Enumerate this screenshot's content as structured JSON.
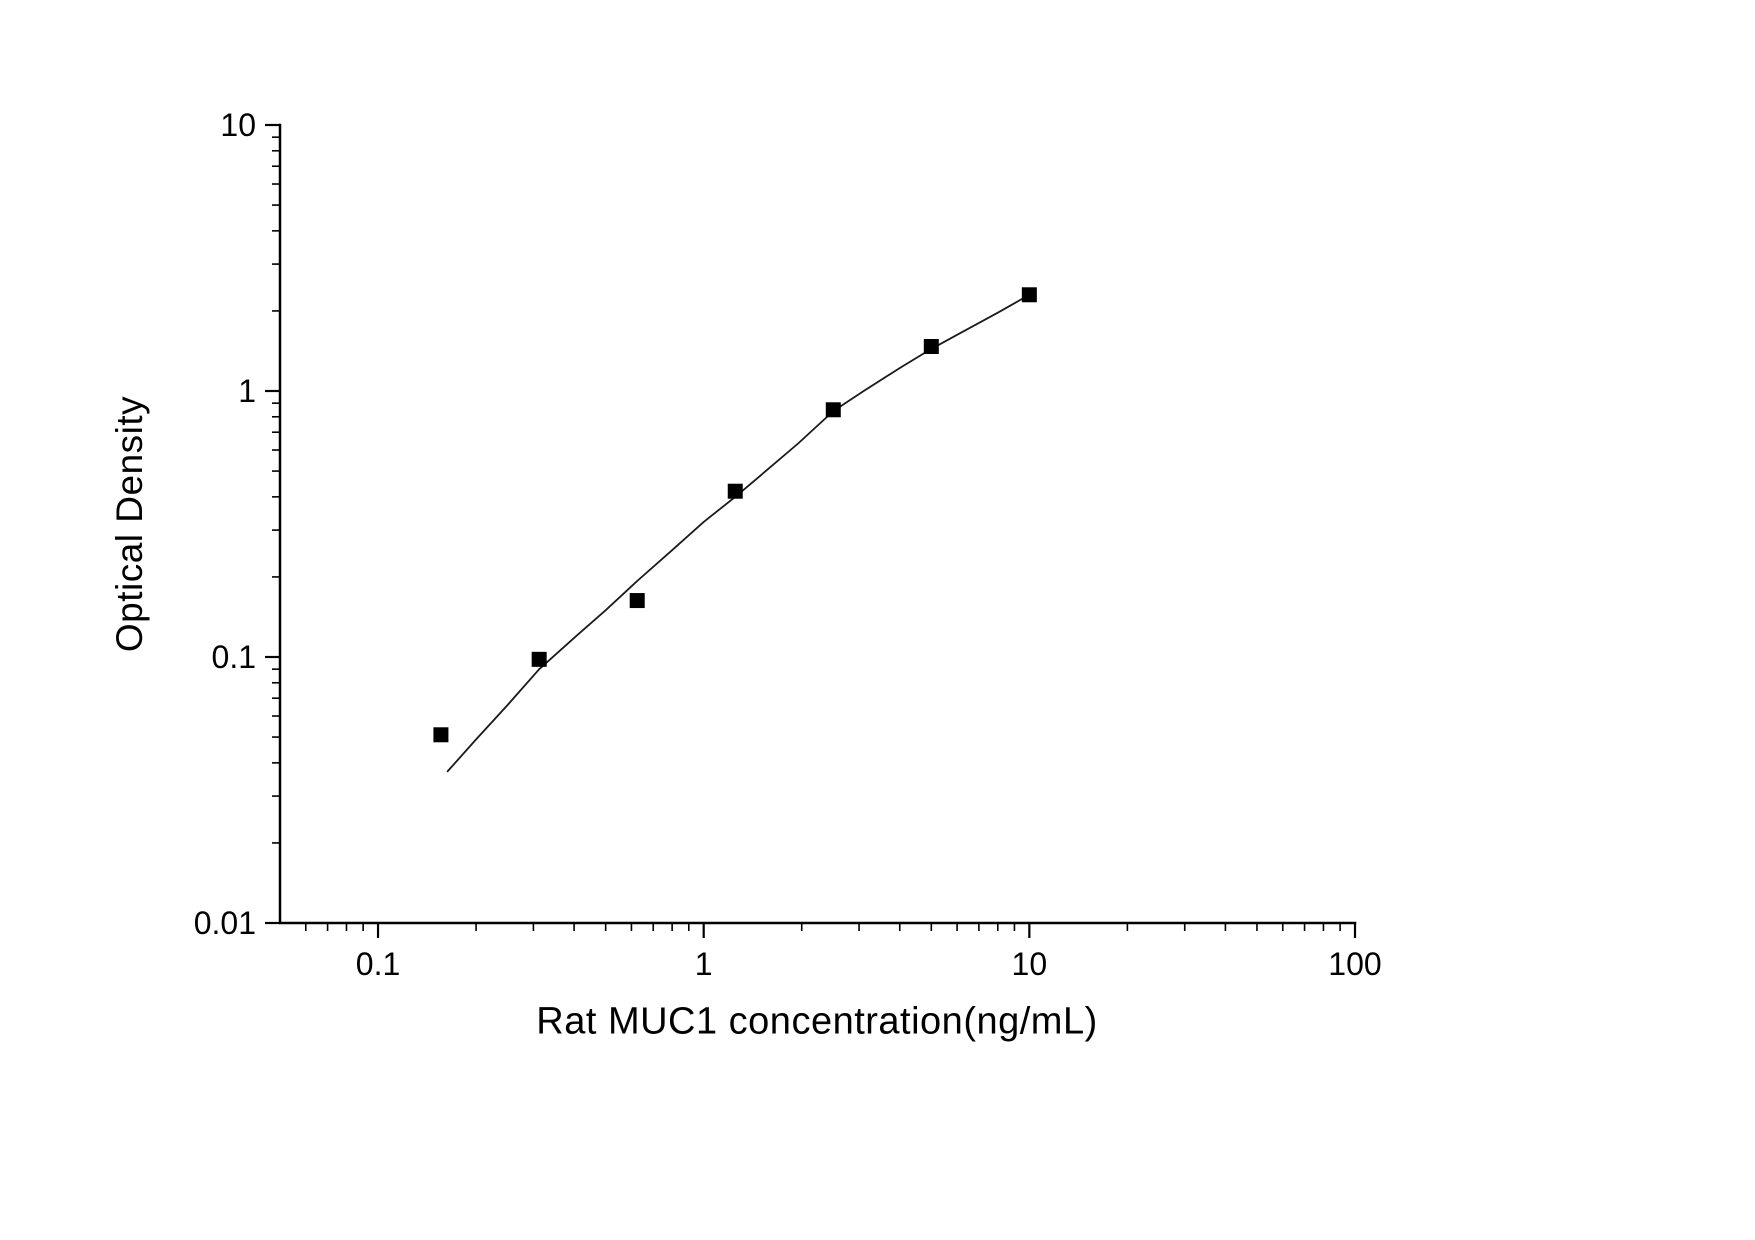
{
  "colors": {
    "background": "#ffffff",
    "axis": "#000000",
    "marker": "#000000",
    "curve": "#1a1a1a"
  },
  "chart_data": {
    "type": "scatter",
    "title": "",
    "xlabel": "Rat MUC1 concentration(ng/mL)",
    "ylabel": "Optical Density",
    "x_scale": "log",
    "y_scale": "log",
    "xlim": [
      0.05,
      100
    ],
    "ylim": [
      0.01,
      10
    ],
    "x_major_ticks": [
      0.1,
      1,
      10,
      100
    ],
    "x_tick_labels": [
      "0.1",
      "1",
      "10",
      "100"
    ],
    "y_major_ticks": [
      0.01,
      0.1,
      1,
      10
    ],
    "y_tick_labels": [
      "0.01",
      "0.1",
      "1",
      "10"
    ],
    "grid": false,
    "legend": false,
    "series": [
      {
        "name": "fitted-curve",
        "type": "line",
        "color": "#1a1a1a",
        "points": [
          [
            0.163,
            0.037
          ],
          [
            0.2,
            0.049
          ],
          [
            0.25,
            0.066
          ],
          [
            0.3125,
            0.09
          ],
          [
            0.4,
            0.118
          ],
          [
            0.5,
            0.15
          ],
          [
            0.625,
            0.193
          ],
          [
            0.8,
            0.252
          ],
          [
            1.0,
            0.322
          ],
          [
            1.25,
            0.4
          ],
          [
            1.55,
            0.5
          ],
          [
            1.95,
            0.635
          ],
          [
            2.5,
            0.84
          ],
          [
            3.1,
            1.0
          ],
          [
            4.0,
            1.22
          ],
          [
            5.0,
            1.44
          ],
          [
            6.3,
            1.68
          ],
          [
            8.0,
            1.97
          ],
          [
            10.0,
            2.3
          ]
        ]
      },
      {
        "name": "standard-points",
        "type": "scatter",
        "marker": "filled-square",
        "color": "#000000",
        "points": [
          [
            0.156,
            0.051
          ],
          [
            0.3125,
            0.098
          ],
          [
            0.625,
            0.163
          ],
          [
            1.25,
            0.42
          ],
          [
            2.5,
            0.85
          ],
          [
            5,
            1.47
          ],
          [
            10,
            2.3
          ]
        ]
      }
    ]
  }
}
